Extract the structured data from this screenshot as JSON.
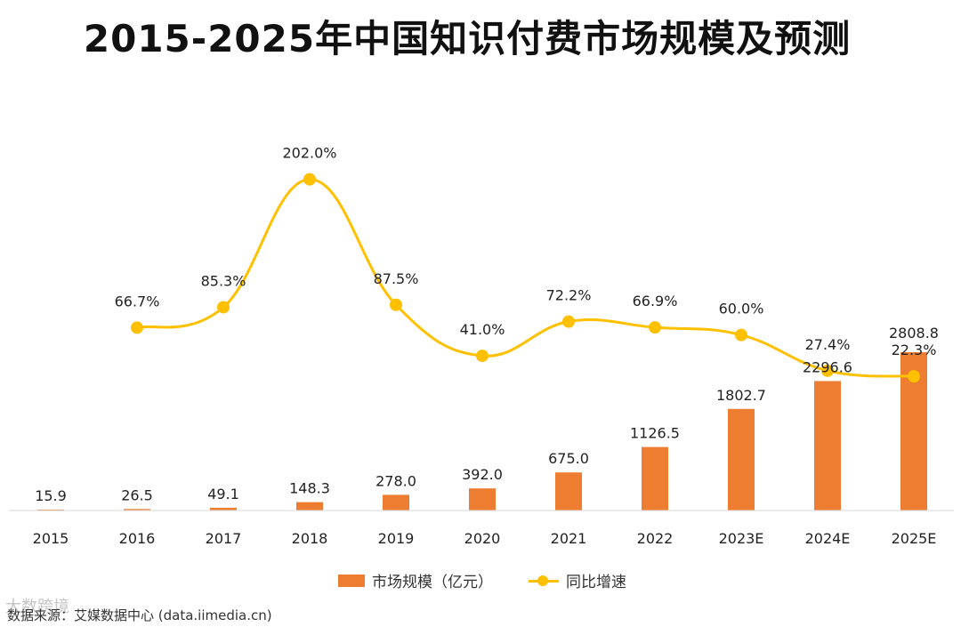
{
  "chart_data": {
    "type": "bar+line",
    "title": "2015-2025年中国知识付费市场规模及预测",
    "categories": [
      "2015",
      "2016",
      "2017",
      "2018",
      "2019",
      "2020",
      "2021",
      "2022",
      "2023E",
      "2024E",
      "2025E"
    ],
    "series": [
      {
        "name": "市场规模（亿元）",
        "type": "bar",
        "color": "#ED7D31",
        "values": [
          15.9,
          26.5,
          49.1,
          148.3,
          278.0,
          392.0,
          675.0,
          1126.5,
          1802.7,
          2296.6,
          2808.8
        ],
        "labels": [
          "15.9",
          "26.5",
          "49.1",
          "148.3",
          "278.0",
          "392.0",
          "675.0",
          "1126.5",
          "1802.7",
          "2296.6",
          "2808.8"
        ]
      },
      {
        "name": "同比增速",
        "type": "line",
        "color": "#FFC000",
        "values": [
          null,
          66.7,
          85.3,
          202.0,
          87.5,
          41.0,
          72.2,
          66.9,
          60.0,
          27.4,
          22.3
        ],
        "labels": [
          "",
          "66.7%",
          "85.3%",
          "202.0%",
          "87.5%",
          "41.0%",
          "72.2%",
          "66.9%",
          "60.0%",
          "27.4%",
          "22.3%"
        ]
      }
    ],
    "legend_position": "bottom-center"
  },
  "source": "数据来源：艾媒数据中心 (data.iimedia.cn)",
  "watermark": "大数跨境"
}
